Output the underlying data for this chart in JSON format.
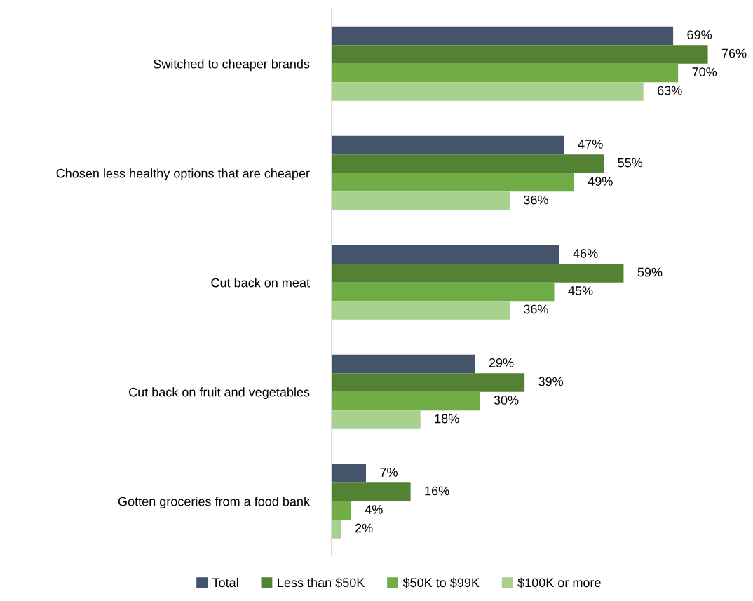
{
  "chart_data": {
    "type": "bar",
    "orientation": "horizontal",
    "categories": [
      "Switched to cheaper brands",
      "Chosen less healthy options that are cheaper",
      "Cut back on meat",
      "Cut back on fruit and vegetables",
      "Gotten groceries from a food bank"
    ],
    "series": [
      {
        "name": "Total",
        "color": "#44546a",
        "values": [
          69,
          47,
          46,
          29,
          7
        ],
        "value_labels": [
          "69%",
          "47%",
          "46%",
          "29%",
          "7%"
        ]
      },
      {
        "name": "Less than $50K",
        "color": "#548235",
        "values": [
          76,
          55,
          59,
          39,
          16
        ],
        "value_labels": [
          "76%",
          "55%",
          "59%",
          "39%",
          "16%"
        ]
      },
      {
        "name": "$50K to $99K",
        "color": "#70ad47",
        "values": [
          70,
          49,
          45,
          30,
          4
        ],
        "value_labels": [
          "70%",
          "49%",
          "45%",
          "30%",
          "4%"
        ]
      },
      {
        "name": "$100K or more",
        "color": "#a9d18e",
        "values": [
          63,
          36,
          36,
          18,
          2
        ],
        "value_labels": [
          "63%",
          "36%",
          "36%",
          "18%",
          "2%"
        ]
      }
    ],
    "legend": "bottom",
    "grid": false
  }
}
